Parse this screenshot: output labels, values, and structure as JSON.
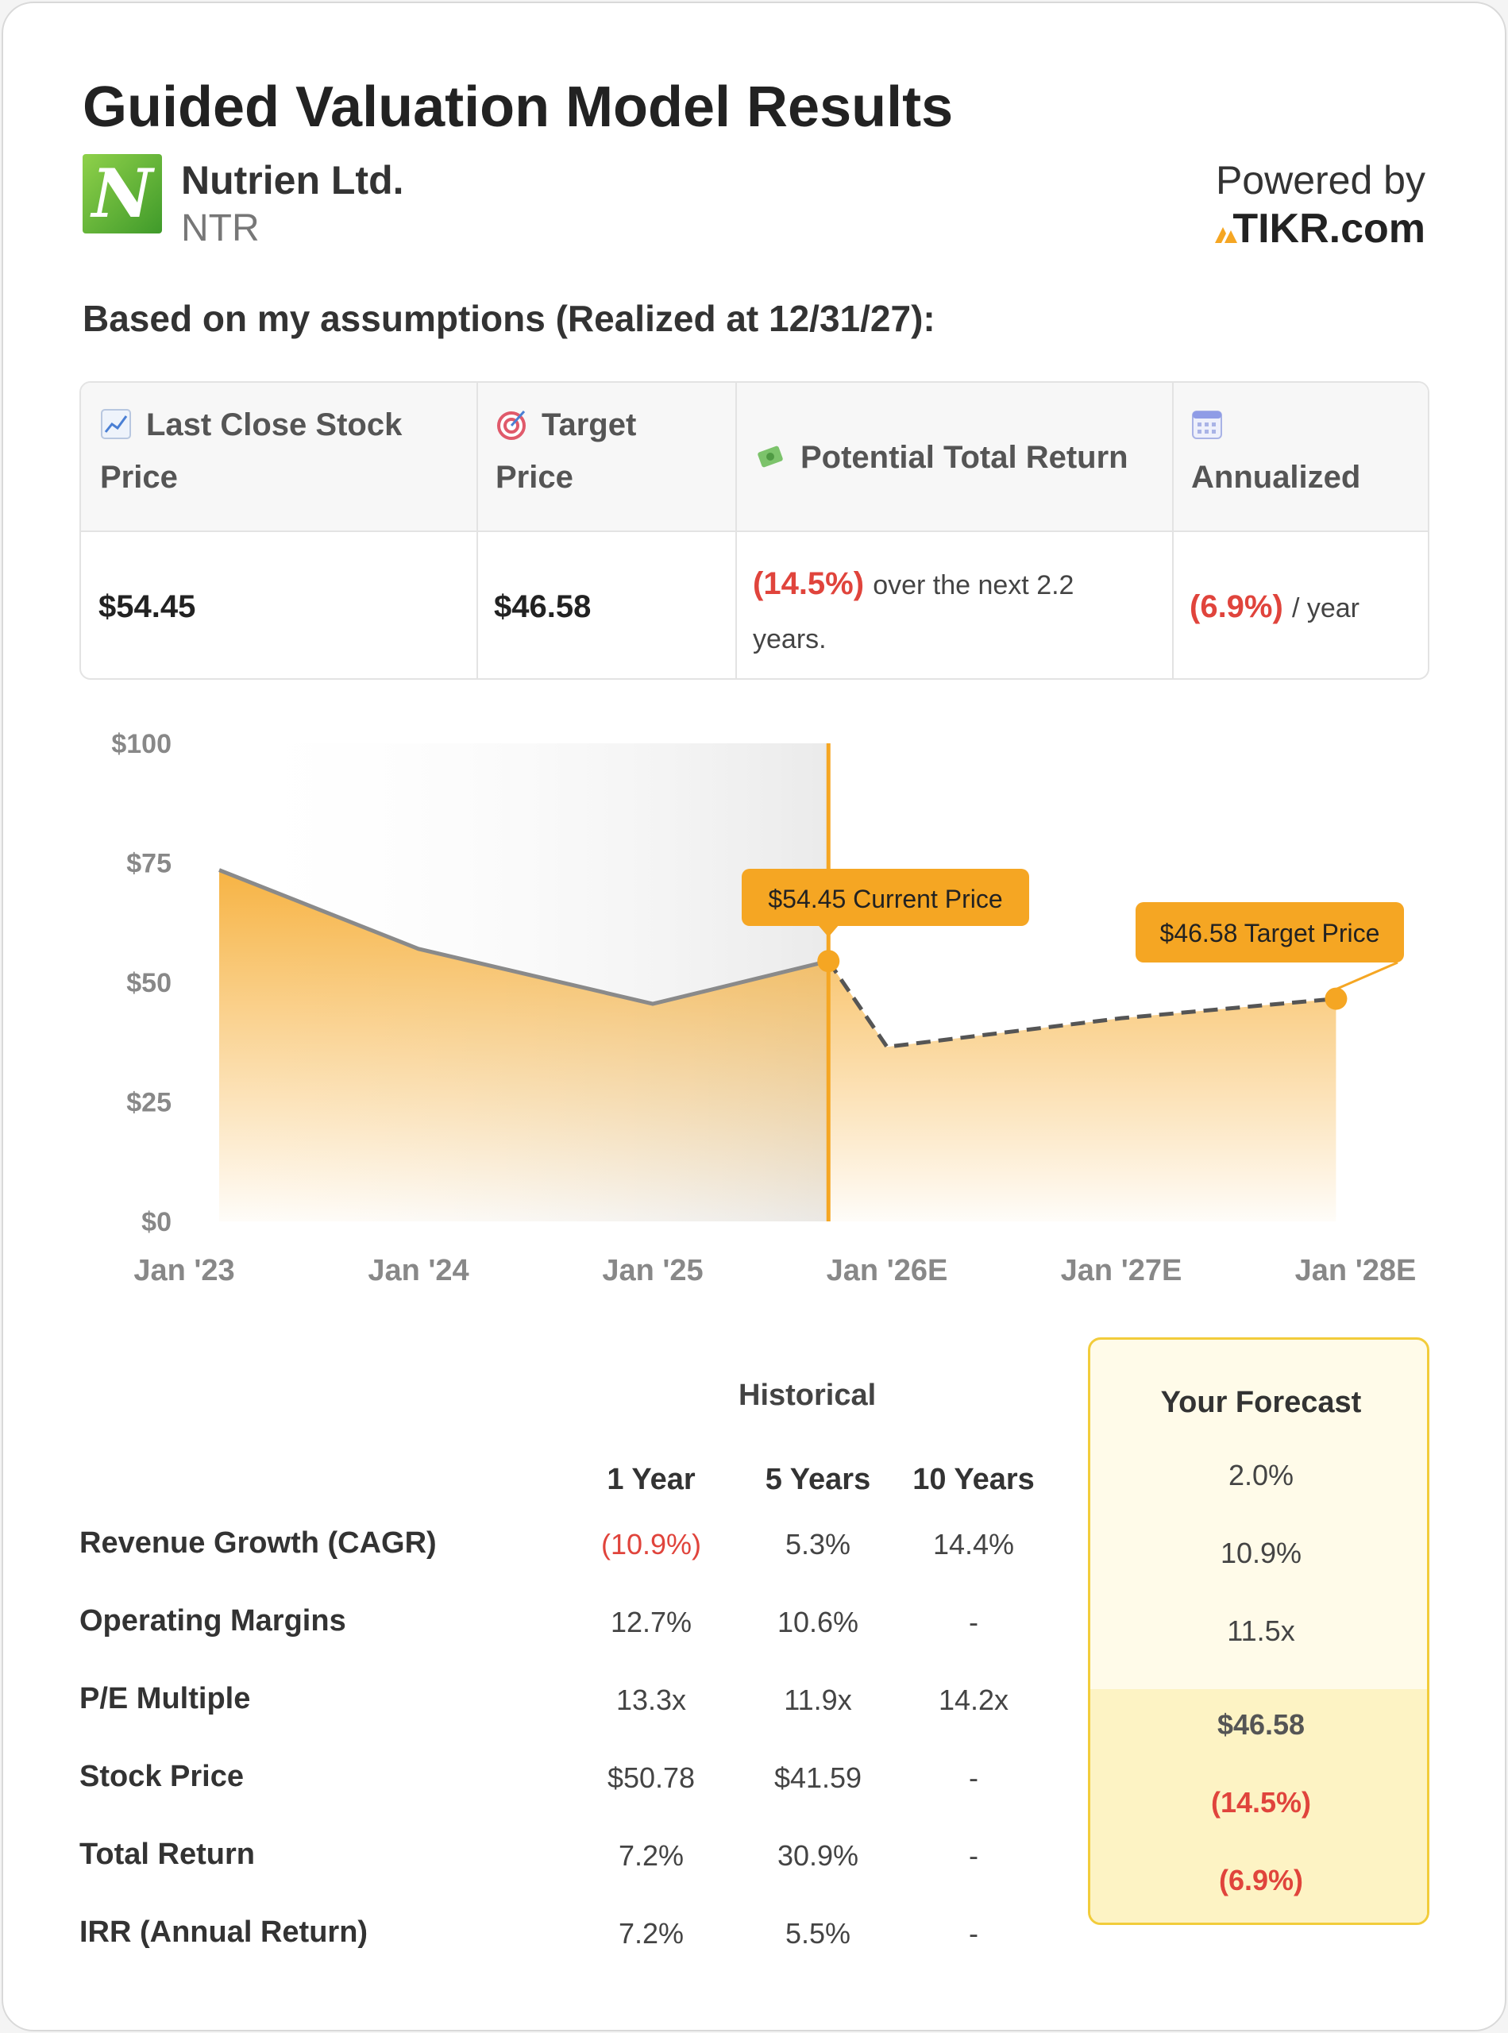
{
  "header": {
    "title": "Guided Valuation Model Results",
    "company_name": "Nutrien Ltd.",
    "ticker": "NTR",
    "logo_letter": "N",
    "powered_by": "Powered by",
    "brand": "TIKR.com"
  },
  "assumptions_line": "Based on my assumptions (Realized at 12/31/27):",
  "summary": {
    "headers": {
      "last_close_line1": "Last Close Stock",
      "last_close_line2": "Price",
      "target_line1": "Target",
      "target_line2": "Price",
      "total_return": "Potential Total Return",
      "annualized": "Annualized"
    },
    "icons": {
      "last_close": "chart-increasing-icon",
      "target": "bullseye-icon",
      "total_return": "money-with-wings-icon",
      "annualized": "calendar-icon"
    },
    "values": {
      "last_close": "$54.45",
      "target": "$46.58",
      "total_return_pct": "(14.5%)",
      "total_return_text1": "over the next 2.2",
      "total_return_text2": "years.",
      "annualized_pct": "(6.9%)",
      "annualized_text": "/ year"
    }
  },
  "chart_data": {
    "type": "area",
    "x_labels": [
      "Jan '23",
      "Jan '24",
      "Jan '25",
      "Jan '26E",
      "Jan '27E",
      "Jan '28E"
    ],
    "y_ticks": [
      "$0",
      "$25",
      "$50",
      "$75",
      "$100"
    ],
    "ylim": [
      0,
      100
    ],
    "historical": {
      "x": [
        "2023-01",
        "2024-01",
        "2025-01",
        "2025-10"
      ],
      "y": [
        73.5,
        57,
        45.5,
        54.45
      ]
    },
    "forecast": {
      "x": [
        "2025-10",
        "2026-01",
        "2027-01",
        "2027-12"
      ],
      "y": [
        54.45,
        36.5,
        42.5,
        46.58
      ]
    },
    "annotations": {
      "current": "$54.45 Current Price",
      "target": "$46.58 Target Price"
    },
    "colors": {
      "area": "#f5a623",
      "marker": "#f5a623",
      "line": "#8a8a8a",
      "historical_shade": "#eeeeee"
    }
  },
  "table": {
    "historical_title": "Historical",
    "columns": [
      "1 Year",
      "5 Years",
      "10 Years"
    ],
    "rows": [
      {
        "label": "Revenue Growth (CAGR)",
        "values": [
          "(10.9%)",
          "5.3%",
          "14.4%"
        ]
      },
      {
        "label": "Operating Margins",
        "values": [
          "12.7%",
          "10.6%",
          "-"
        ]
      },
      {
        "label": "P/E Multiple",
        "values": [
          "13.3x",
          "11.9x",
          "14.2x"
        ]
      },
      {
        "label": "Stock Price",
        "values": [
          "$50.78",
          "$41.59",
          "-"
        ]
      },
      {
        "label": "Total Return",
        "values": [
          "7.2%",
          "30.9%",
          "-"
        ]
      },
      {
        "label": "IRR (Annual Return)",
        "values": [
          "7.2%",
          "5.5%",
          "-"
        ]
      }
    ],
    "forecast_title": "Your Forecast",
    "forecast_values": [
      "2.0%",
      "10.9%",
      "11.5x",
      "$46.58",
      "(14.5%)",
      "(6.9%)"
    ]
  },
  "colors": {
    "negative": "#e0443c",
    "accent": "#f5a623",
    "forecast_border": "#f2cc3b"
  }
}
